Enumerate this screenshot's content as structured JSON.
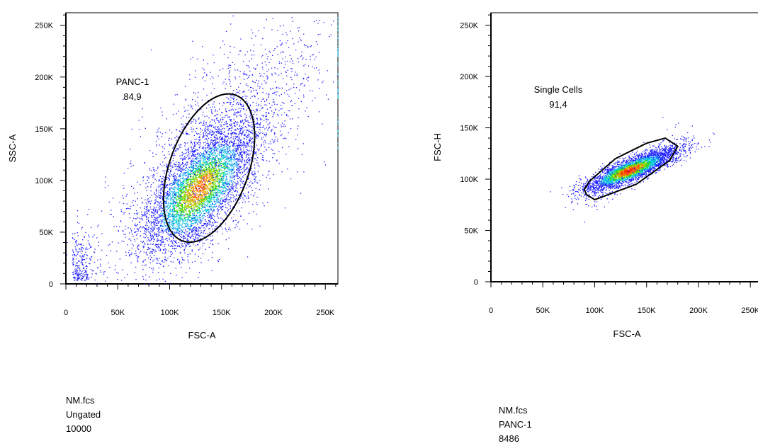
{
  "chart_data": [
    {
      "type": "scatter",
      "subtype": "flow-cytometry-density-dot-plot",
      "xlabel": "FSC-A",
      "ylabel": "SSC-A",
      "xlim": [
        0,
        262144
      ],
      "ylim": [
        0,
        262144
      ],
      "x_ticks": [
        0,
        50000,
        100000,
        150000,
        200000,
        250000
      ],
      "x_tick_labels": [
        "0",
        "50K",
        "100K",
        "150K",
        "200K",
        "250K"
      ],
      "y_ticks": [
        0,
        50000,
        100000,
        150000,
        200000,
        250000
      ],
      "y_tick_labels": [
        "0",
        "50K",
        "100K",
        "150K",
        "200K",
        "250K"
      ],
      "grid": false,
      "event_count": 10000,
      "population_centers": [
        {
          "x": 125000,
          "y": 85000,
          "weight": 0.62
        },
        {
          "x": 150000,
          "y": 120000,
          "weight": 0.2
        },
        {
          "x": 15000,
          "y": 15000,
          "weight": 0.04
        }
      ],
      "gate": {
        "name": "PANC-1",
        "percent": "84,9",
        "shape": "ellipse",
        "center": [
          138000,
          112000
        ],
        "semi_axes": [
          38000,
          75000
        ],
        "rotation_deg": -20
      },
      "sample": {
        "file": "NM.fcs",
        "parent": "Ungated",
        "count": "10000"
      },
      "colors": {
        "low": "#1a1aff",
        "mid": "#00d000",
        "high": "#ff2000"
      }
    },
    {
      "type": "scatter",
      "subtype": "flow-cytometry-density-dot-plot",
      "xlabel": "FSC-A",
      "ylabel": "FSC-H",
      "xlim": [
        0,
        262144
      ],
      "ylim": [
        0,
        262144
      ],
      "x_ticks": [
        0,
        50000,
        100000,
        150000,
        200000,
        250000
      ],
      "x_tick_labels": [
        "0",
        "50K",
        "100K",
        "150K",
        "200K",
        "250K"
      ],
      "y_ticks": [
        0,
        50000,
        100000,
        150000,
        200000,
        250000
      ],
      "y_tick_labels": [
        "0",
        "50K",
        "100K",
        "150K",
        "200K",
        "250K"
      ],
      "grid": false,
      "event_count": 8486,
      "population_centers": [
        {
          "x": 130000,
          "y": 110000,
          "weight": 1.0
        }
      ],
      "gate": {
        "name": "Single Cells",
        "percent": "91,4",
        "shape": "polygon",
        "vertices": [
          [
            92000,
            85000
          ],
          [
            100000,
            80000
          ],
          [
            140000,
            95000
          ],
          [
            172000,
            118000
          ],
          [
            180000,
            132000
          ],
          [
            168000,
            140000
          ],
          [
            150000,
            135000
          ],
          [
            120000,
            120000
          ],
          [
            95000,
            98000
          ],
          [
            90000,
            90000
          ]
        ]
      },
      "sample": {
        "file": "NM.fcs",
        "parent": "PANC-1",
        "count": "8486"
      },
      "colors": {
        "low": "#1a1aff",
        "mid": "#00d000",
        "high": "#ff2000"
      }
    }
  ]
}
